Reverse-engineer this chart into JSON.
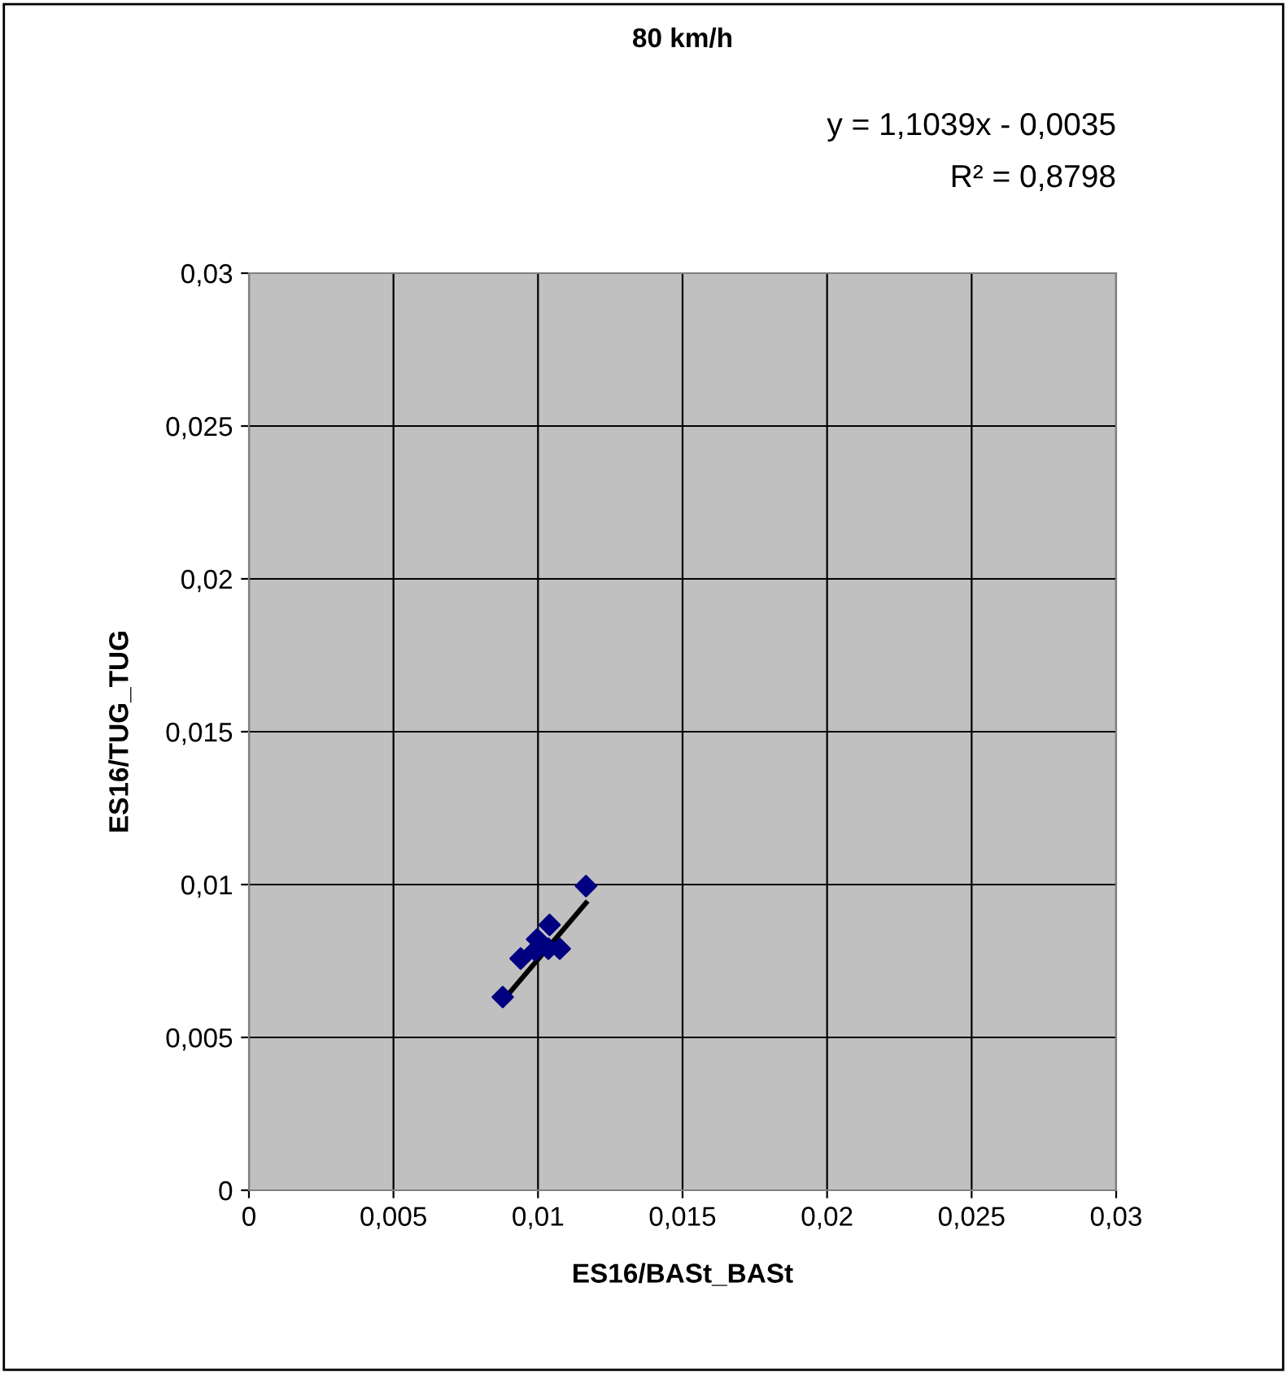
{
  "chart_data": {
    "type": "scatter",
    "title": "80 km/h",
    "xlabel": "ES16/BASt_BASt",
    "ylabel": "ES16/TUG_TUG",
    "annotations": [
      "y = 1,1039x - 0,0035",
      "R² = 0,8798"
    ],
    "series": [
      {
        "color": "#000080",
        "marker": "diamond",
        "x": [
          0.00878,
          0.0094,
          0.00997,
          0.0099,
          0.0104,
          0.01075,
          0.01036,
          0.01166
        ],
        "values": [
          0.00632,
          0.00758,
          0.00821,
          0.00784,
          0.00868,
          0.0079,
          0.0079,
          0.00995
        ]
      },
      {
        "type": "line",
        "color": "#000000",
        "marker": "none",
        "x": [
          0.00878,
          0.01166
        ],
        "values": [
          0.0062,
          0.0094
        ]
      }
    ],
    "xlim": [
      0,
      0.03
    ],
    "ylim": [
      0,
      0.03
    ],
    "xticks": [
      {
        "value": 0,
        "label": "0"
      },
      {
        "value": 0.005,
        "label": "0,005"
      },
      {
        "value": 0.01,
        "label": "0,01"
      },
      {
        "value": 0.015,
        "label": "0,015"
      },
      {
        "value": 0.02,
        "label": "0,02"
      },
      {
        "value": 0.025,
        "label": "0,025"
      },
      {
        "value": 0.03,
        "label": "0,03"
      }
    ],
    "yticks": [
      {
        "value": 0,
        "label": "0"
      },
      {
        "value": 0.005,
        "label": "0,005"
      },
      {
        "value": 0.01,
        "label": "0,01"
      },
      {
        "value": 0.015,
        "label": "0,015"
      },
      {
        "value": 0.02,
        "label": "0,02"
      },
      {
        "value": 0.025,
        "label": "0,025"
      },
      {
        "value": 0.03,
        "label": "0,03"
      }
    ],
    "grid": true,
    "legend": false
  }
}
